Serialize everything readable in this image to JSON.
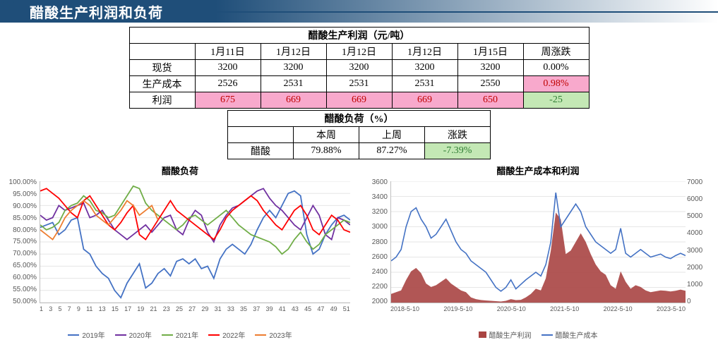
{
  "header": {
    "title": "醋酸生产利润和负荷"
  },
  "table1": {
    "title": "醋酸生产利润（元/吨）",
    "dates": [
      "1月11日",
      "1月12日",
      "1月12日",
      "1月12日",
      "1月15日",
      "周涨跌"
    ],
    "rows": [
      {
        "label": "现货",
        "cells": [
          "3200",
          "3200",
          "3200",
          "3200",
          "3200"
        ],
        "change": "0.00%",
        "cls": ""
      },
      {
        "label": "生产成本",
        "cells": [
          "2526",
          "2531",
          "2531",
          "2531",
          "2550"
        ],
        "change": "0.98%",
        "cls": "pink"
      },
      {
        "label": "利润",
        "cells": [
          "675",
          "669",
          "669",
          "669",
          "650"
        ],
        "change": "-25",
        "cls": "green",
        "row_cls": "pink",
        "red": true
      }
    ]
  },
  "table2": {
    "title": "醋酸负荷（%）",
    "headers": [
      "",
      "本周",
      "上周",
      "涨跌"
    ],
    "row": {
      "label": "醋酸",
      "this_week": "79.88%",
      "last_week": "87.27%",
      "change": "-7.39%"
    }
  },
  "chart1": {
    "title": "醋酸负荷",
    "y_ticks": [
      "100.00%",
      "95.00%",
      "90.00%",
      "85.00%",
      "80.00%",
      "75.00%",
      "70.00%",
      "65.00%",
      "60.00%",
      "55.00%",
      "50.00%"
    ],
    "y_min": 50,
    "y_max": 100,
    "x_ticks": [
      "1",
      "3",
      "5",
      "7",
      "9",
      "11",
      "13",
      "15",
      "17",
      "19",
      "21",
      "23",
      "25",
      "27",
      "29",
      "31",
      "33",
      "35",
      "37",
      "39",
      "41",
      "43",
      "45",
      "47",
      "49",
      "51"
    ],
    "series": [
      {
        "name": "2019年",
        "color": "#4472c4",
        "values": [
          81,
          82,
          83,
          78,
          80,
          84,
          85,
          72,
          70,
          65,
          62,
          60,
          55,
          52,
          58,
          62,
          66,
          56,
          58,
          62,
          64,
          61,
          67,
          68,
          66,
          68,
          64,
          65,
          60,
          68,
          72,
          74,
          72,
          70,
          74,
          80,
          85,
          88,
          85,
          90,
          95,
          96,
          94,
          78,
          70,
          72,
          78,
          82,
          85,
          86,
          84
        ]
      },
      {
        "name": "2020年",
        "color": "#7030a0",
        "values": [
          86,
          84,
          85,
          90,
          88,
          89,
          90,
          91,
          85,
          86,
          88,
          84,
          80,
          78,
          76,
          78,
          80,
          82,
          79,
          82,
          85,
          86,
          80,
          78,
          84,
          88,
          86,
          79,
          75,
          82,
          86,
          89,
          90,
          92,
          94,
          96,
          97,
          93,
          90,
          88,
          85,
          82,
          80,
          85,
          90,
          86,
          78,
          76,
          85,
          84,
          82
        ]
      },
      {
        "name": "2021年",
        "color": "#70ad47",
        "values": [
          82,
          80,
          81,
          83,
          88,
          90,
          91,
          94,
          92,
          88,
          87,
          85,
          86,
          90,
          94,
          98,
          97,
          91,
          88,
          86,
          84,
          82,
          80,
          82,
          85,
          86,
          84,
          82,
          84,
          86,
          88,
          85,
          82,
          80,
          78,
          77,
          76,
          75,
          73,
          70,
          72,
          76,
          79,
          75,
          72,
          74,
          78,
          80,
          82,
          84,
          83
        ]
      },
      {
        "name": "2022年",
        "color": "#ff0000",
        "values": [
          96,
          97,
          95,
          93,
          90,
          87,
          85,
          92,
          94,
          90,
          86,
          82,
          80,
          83,
          87,
          90,
          78,
          76,
          80,
          84,
          88,
          92,
          88,
          86,
          84,
          82,
          80,
          78,
          76,
          80,
          85,
          88,
          90,
          92,
          94,
          92,
          88,
          85,
          82,
          80,
          84,
          88,
          90,
          86,
          80,
          78,
          82,
          86,
          84,
          80,
          79
        ]
      },
      {
        "name": "2023年",
        "color": "#ed7d31",
        "values": [
          80,
          78,
          76,
          80,
          85,
          88,
          90,
          92,
          90,
          86,
          84,
          82,
          85,
          88,
          92,
          90,
          86,
          88,
          90,
          84
        ]
      }
    ],
    "colors": {
      "grid": "#e6e6e6",
      "axis": "#bfbfbf",
      "bg": "#ffffff"
    }
  },
  "chart2": {
    "title": "醋酸生产成本和利润",
    "y_left_ticks": [
      "3600",
      "3400",
      "3200",
      "3000",
      "2800",
      "2600",
      "2400",
      "2200",
      "2000"
    ],
    "y_left_min": 2000,
    "y_left_max": 3600,
    "y_right_ticks": [
      "7000",
      "6000",
      "5000",
      "4000",
      "3000",
      "2000",
      "1000",
      "0"
    ],
    "y_right_min": 0,
    "y_right_max": 7000,
    "x_ticks": [
      "2018-5-10",
      "2019-5-10",
      "2020-5-10",
      "2021-5-10",
      "2022-5-10",
      "2023-5-10"
    ],
    "profit_color": "#a94442",
    "cost_color": "#4472c4",
    "legend": [
      "醋酸生产利润",
      "醋酸生产成本"
    ],
    "cost_series": [
      2550,
      2600,
      2700,
      3000,
      3200,
      3250,
      3100,
      3000,
      2850,
      2900,
      3000,
      3100,
      2950,
      2800,
      2700,
      2650,
      2550,
      2500,
      2450,
      2400,
      2300,
      2200,
      2150,
      2200,
      2300,
      2180,
      2240,
      2300,
      2350,
      2400,
      2350,
      2500,
      2800,
      3450,
      3000,
      3100,
      3200,
      3300,
      3200,
      3000,
      2900,
      2800,
      2750,
      2700,
      2650,
      2700,
      2980,
      2650,
      2600,
      2650,
      2700,
      2650,
      2600,
      2620,
      2640,
      2600,
      2580,
      2620,
      2650,
      2620
    ],
    "profit_series": [
      500,
      600,
      700,
      1300,
      1800,
      2000,
      1700,
      1100,
      900,
      1000,
      1200,
      1400,
      1100,
      900,
      700,
      600,
      300,
      200,
      150,
      120,
      100,
      80,
      60,
      100,
      200,
      140,
      160,
      300,
      500,
      800,
      700,
      1400,
      3000,
      5200,
      4800,
      2800,
      3000,
      3500,
      4000,
      3500,
      2800,
      2200,
      1800,
      1600,
      1000,
      800,
      1800,
      1200,
      800,
      1000,
      900,
      700,
      600,
      650,
      700,
      680,
      640,
      680,
      750,
      680
    ],
    "colors": {
      "grid": "#e6e6e6",
      "axis": "#bfbfbf",
      "bg": "#ffffff"
    }
  }
}
